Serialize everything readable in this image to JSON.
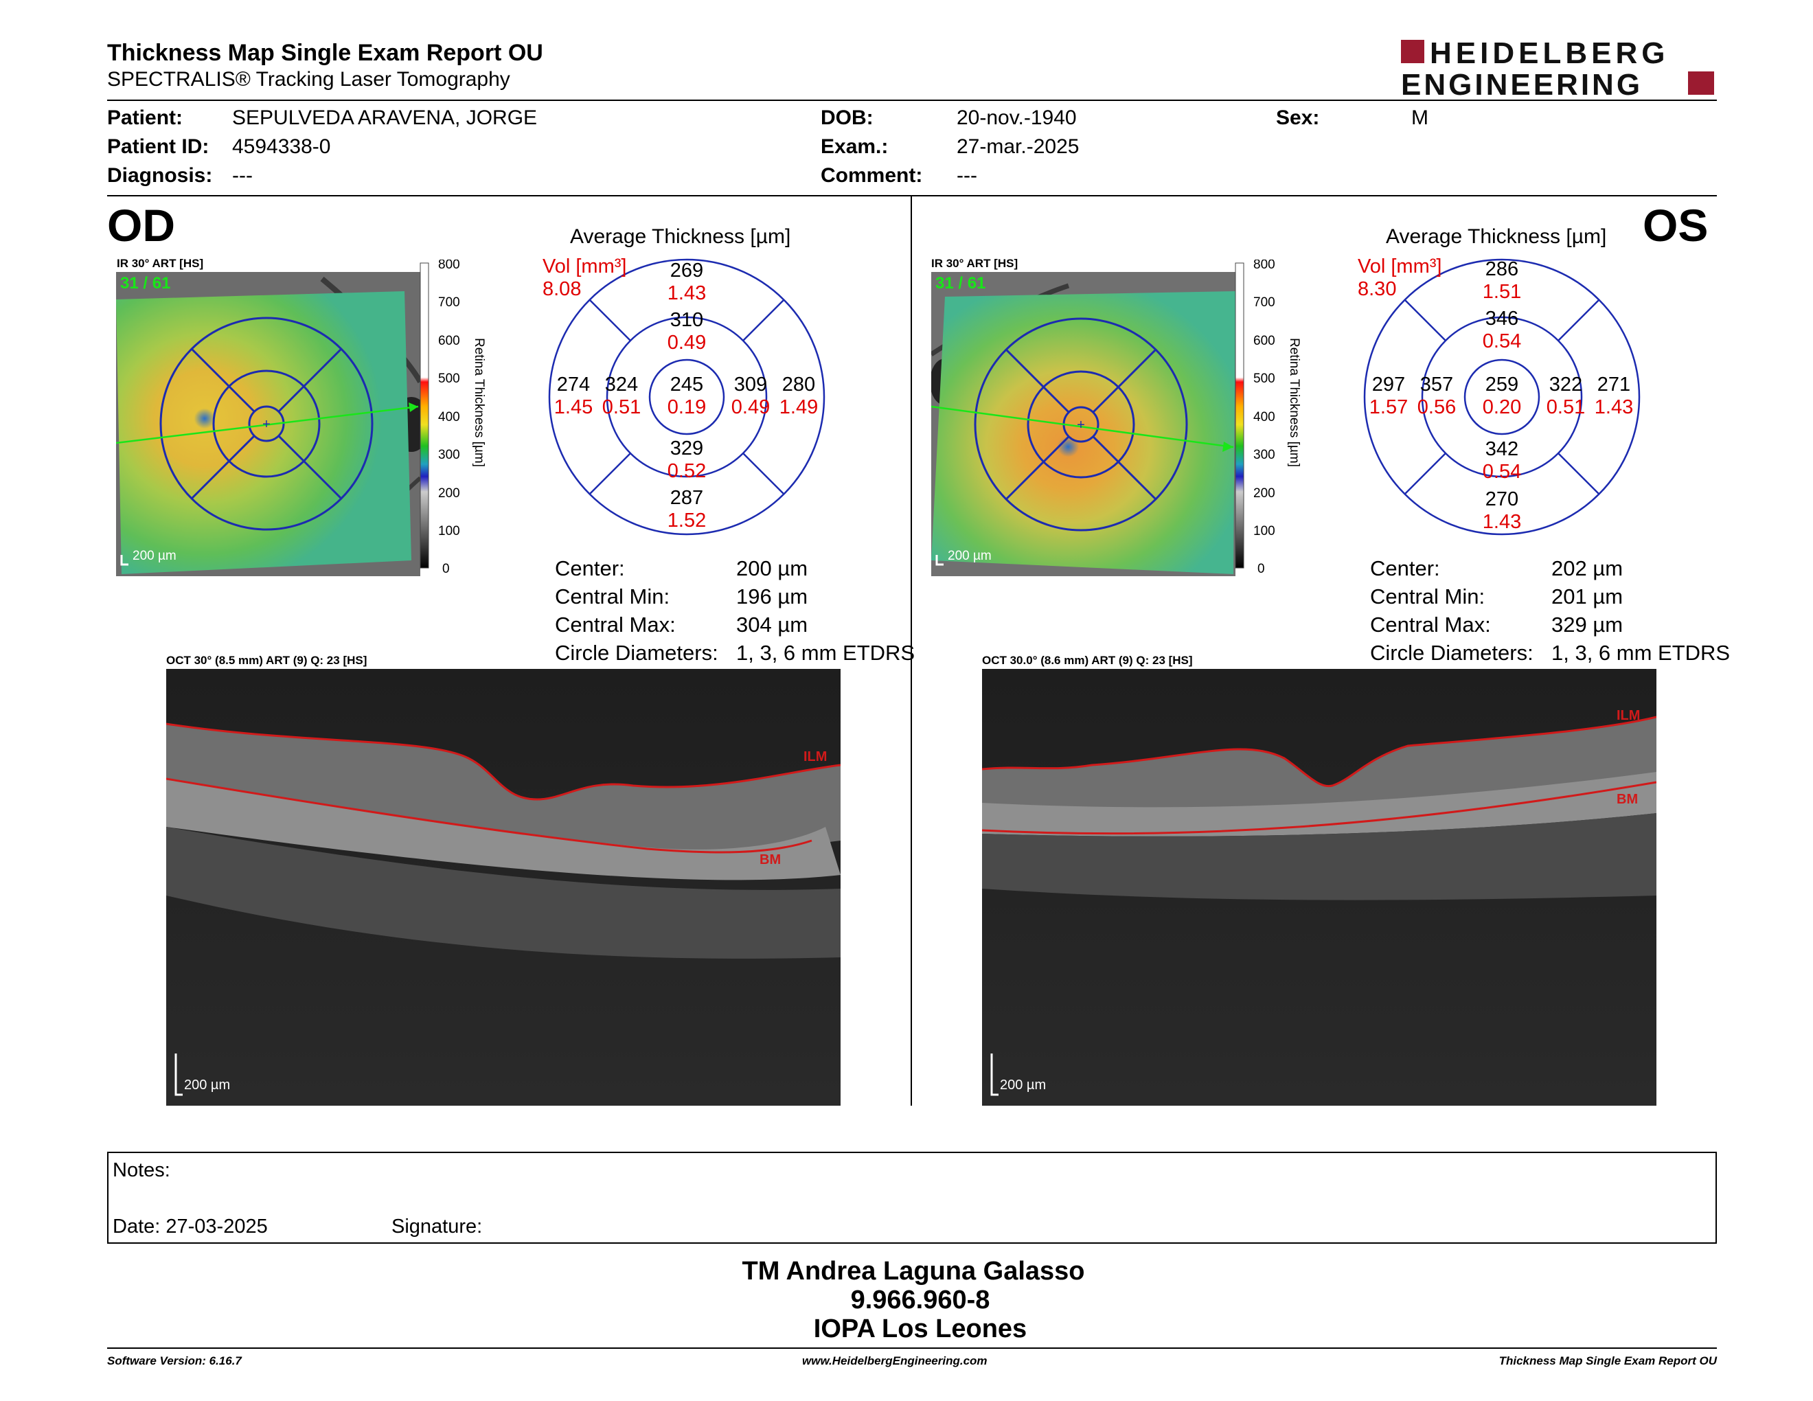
{
  "header": {
    "title": "Thickness Map Single Exam Report OU",
    "subtitle": "SPECTRALIS® Tracking Laser Tomography",
    "logo_line1": "HEIDELBERG",
    "logo_line2": "ENGINEERING",
    "brand_color": "#9b1b30"
  },
  "patient": {
    "patient_label": "Patient:",
    "patient_value": "SEPULVEDA ARAVENA, JORGE",
    "id_label": "Patient ID:",
    "id_value": "4594338-0",
    "diag_label": "Diagnosis:",
    "diag_value": "---",
    "dob_label": "DOB:",
    "dob_value": "20-nov.-1940",
    "exam_label": "Exam.:",
    "exam_value": "27-mar.-2025",
    "comment_label": "Comment:",
    "comment_value": "---",
    "sex_label": "Sex:",
    "sex_value": "M"
  },
  "od": {
    "eye": "OD",
    "ir_caption": "IR 30° ART [HS]",
    "frames": "31 / 61",
    "scale": "200 µm",
    "avg_title": "Average Thickness [µm]",
    "vol_label": "Vol [mm³]",
    "vol_value": "8.08",
    "grid": {
      "center_t": "245",
      "center_v": "0.19",
      "inner_sup_t": "310",
      "inner_sup_v": "0.49",
      "inner_inf_t": "329",
      "inner_inf_v": "0.52",
      "inner_left_t": "324",
      "inner_left_v": "0.51",
      "inner_right_t": "309",
      "inner_right_v": "0.49",
      "outer_sup_t": "269",
      "outer_sup_v": "1.43",
      "outer_inf_t": "287",
      "outer_inf_v": "1.52",
      "outer_left_t": "274",
      "outer_left_v": "1.45",
      "outer_right_t": "280",
      "outer_right_v": "1.49"
    },
    "stats": {
      "center_label": "Center:",
      "center_value": "200 µm",
      "min_label": "Central Min:",
      "min_value": "196 µm",
      "max_label": "Central Max:",
      "max_value": "304 µm",
      "circ_label": "Circle Diameters:",
      "circ_value": "1, 3, 6 mm ETDRS"
    },
    "oct_caption": "OCT 30° (8.5 mm) ART (9) Q: 23 [HS]",
    "oct_scale": "200 µm",
    "ilm": "ILM",
    "bm": "BM"
  },
  "os": {
    "eye": "OS",
    "ir_caption": "IR 30° ART [HS]",
    "frames": "31 / 61",
    "scale": "200 µm",
    "avg_title": "Average Thickness [µm]",
    "vol_label": "Vol [mm³]",
    "vol_value": "8.30",
    "grid": {
      "center_t": "259",
      "center_v": "0.20",
      "inner_sup_t": "346",
      "inner_sup_v": "0.54",
      "inner_inf_t": "342",
      "inner_inf_v": "0.54",
      "inner_left_t": "357",
      "inner_left_v": "0.56",
      "inner_right_t": "322",
      "inner_right_v": "0.51",
      "outer_sup_t": "286",
      "outer_sup_v": "1.51",
      "outer_inf_t": "270",
      "outer_inf_v": "1.43",
      "outer_left_t": "297",
      "outer_left_v": "1.57",
      "outer_right_t": "271",
      "outer_right_v": "1.43"
    },
    "stats": {
      "center_label": "Center:",
      "center_value": "202 µm",
      "min_label": "Central Min:",
      "min_value": "201 µm",
      "max_label": "Central Max:",
      "max_value": "329 µm",
      "circ_label": "Circle Diameters:",
      "circ_value": "1, 3, 6 mm ETDRS"
    },
    "oct_caption": "OCT 30.0° (8.6 mm) ART (9) Q: 23 [HS]",
    "oct_scale": "200 µm",
    "ilm": "ILM",
    "bm": "BM"
  },
  "colorbar": {
    "ticks": [
      "800",
      "700",
      "600",
      "500",
      "400",
      "300",
      "200",
      "100",
      "0"
    ],
    "label": "Retina Thickness [µm]"
  },
  "notes": {
    "notes_label": "Notes:",
    "date_label": "Date: 27-03-2025",
    "signature_label": "Signature:"
  },
  "signature_block": {
    "name": "TM Andrea Laguna Galasso",
    "rut": "9.966.960-8",
    "place": "IOPA Los Leones"
  },
  "footer": {
    "software": "Software Version: 6.16.7",
    "website": "www.HeidelbergEngineering.com",
    "report": "Thickness Map Single Exam Report OU"
  },
  "colors": {
    "value_red": "#e00000",
    "grid_blue": "#1c2bb0",
    "oct_line": "#d11a1a"
  }
}
